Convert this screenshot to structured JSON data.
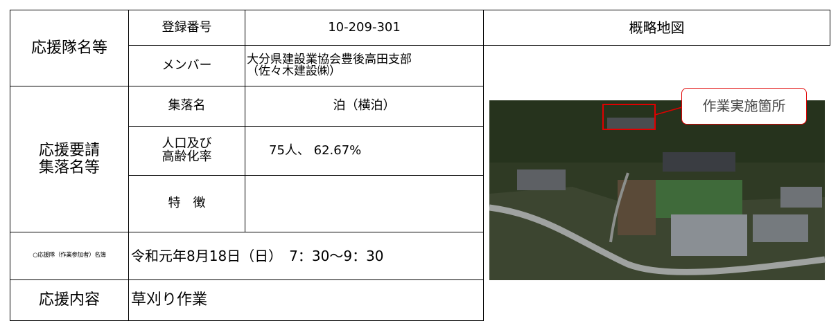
{
  "team": {
    "label": "応援隊名等",
    "reg_label": "登録番号",
    "reg_value": "10-209-301",
    "member_label": "メンバー",
    "member_lines": [
      "大分県建設業協会豊後高田支部",
      "（佐々木建設㈱）"
    ]
  },
  "village": {
    "label_lines": [
      "応援要請",
      "集落名等"
    ],
    "name_label": "集落名",
    "name_value": "泊（横泊）",
    "pop_label_lines": [
      "人口及び",
      "高齢化率"
    ],
    "pop_value": "75人、 62.67%",
    "feature_label": "特　徴"
  },
  "schedule": {
    "label": "○応援隊（作業参加者）名簿",
    "value": "令和元年8月18日（日）　7：30〜9：30"
  },
  "content": {
    "label": "応援内容",
    "value": "草刈り作業"
  },
  "map": {
    "title": "概略地図",
    "callout": "作業実施箇所"
  }
}
